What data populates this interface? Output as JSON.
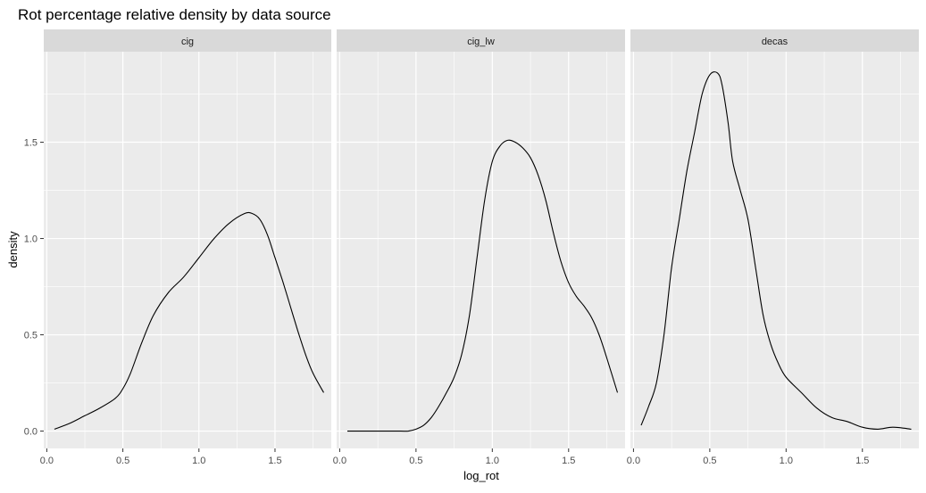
{
  "chart_data": {
    "type": "line",
    "title": "Rot percentage relative density by data source",
    "xlabel": "log_rot",
    "ylabel": "density",
    "xlim": [
      -0.02,
      1.87
    ],
    "ylim": [
      -0.09,
      1.97
    ],
    "x_ticks": [
      0.0,
      0.5,
      1.0,
      1.5
    ],
    "x_tick_labels": [
      "0.0",
      "0.5",
      "1.0",
      "1.5"
    ],
    "y_ticks": [
      0.0,
      0.5,
      1.0,
      1.5
    ],
    "y_tick_labels": [
      "0.0",
      "0.5",
      "1.0",
      "1.5"
    ],
    "grid": true,
    "facets": [
      {
        "label": "cig",
        "x": [
          0.05,
          0.15,
          0.25,
          0.35,
          0.45,
          0.5,
          0.55,
          0.62,
          0.7,
          0.8,
          0.9,
          1.0,
          1.1,
          1.2,
          1.3,
          1.35,
          1.4,
          1.45,
          1.5,
          1.55,
          1.6,
          1.65,
          1.7,
          1.75,
          1.82
        ],
        "y": [
          0.01,
          0.04,
          0.08,
          0.12,
          0.17,
          0.22,
          0.3,
          0.45,
          0.6,
          0.72,
          0.8,
          0.9,
          1.0,
          1.08,
          1.13,
          1.13,
          1.1,
          1.02,
          0.9,
          0.78,
          0.65,
          0.52,
          0.4,
          0.3,
          0.2
        ]
      },
      {
        "label": "cig_lw",
        "x": [
          0.05,
          0.2,
          0.3,
          0.4,
          0.45,
          0.5,
          0.55,
          0.6,
          0.65,
          0.7,
          0.75,
          0.8,
          0.85,
          0.9,
          0.95,
          1.0,
          1.05,
          1.1,
          1.15,
          1.2,
          1.25,
          1.3,
          1.35,
          1.4,
          1.45,
          1.5,
          1.55,
          1.6,
          1.65,
          1.7,
          1.75,
          1.82
        ],
        "y": [
          0.0,
          0.0,
          0.0,
          0.0,
          0.0,
          0.01,
          0.03,
          0.07,
          0.13,
          0.2,
          0.28,
          0.4,
          0.6,
          0.9,
          1.2,
          1.4,
          1.48,
          1.51,
          1.5,
          1.47,
          1.42,
          1.33,
          1.2,
          1.03,
          0.88,
          0.77,
          0.7,
          0.65,
          0.59,
          0.5,
          0.38,
          0.2
        ]
      },
      {
        "label": "decas",
        "x": [
          0.05,
          0.1,
          0.15,
          0.2,
          0.25,
          0.3,
          0.35,
          0.4,
          0.45,
          0.5,
          0.55,
          0.58,
          0.62,
          0.65,
          0.7,
          0.75,
          0.8,
          0.85,
          0.9,
          0.95,
          1.0,
          1.1,
          1.2,
          1.3,
          1.4,
          1.5,
          1.6,
          1.7,
          1.82
        ],
        "y": [
          0.03,
          0.13,
          0.25,
          0.5,
          0.85,
          1.1,
          1.35,
          1.55,
          1.75,
          1.85,
          1.86,
          1.8,
          1.6,
          1.4,
          1.25,
          1.1,
          0.85,
          0.6,
          0.45,
          0.35,
          0.28,
          0.2,
          0.12,
          0.07,
          0.05,
          0.02,
          0.01,
          0.02,
          0.01
        ]
      }
    ]
  }
}
